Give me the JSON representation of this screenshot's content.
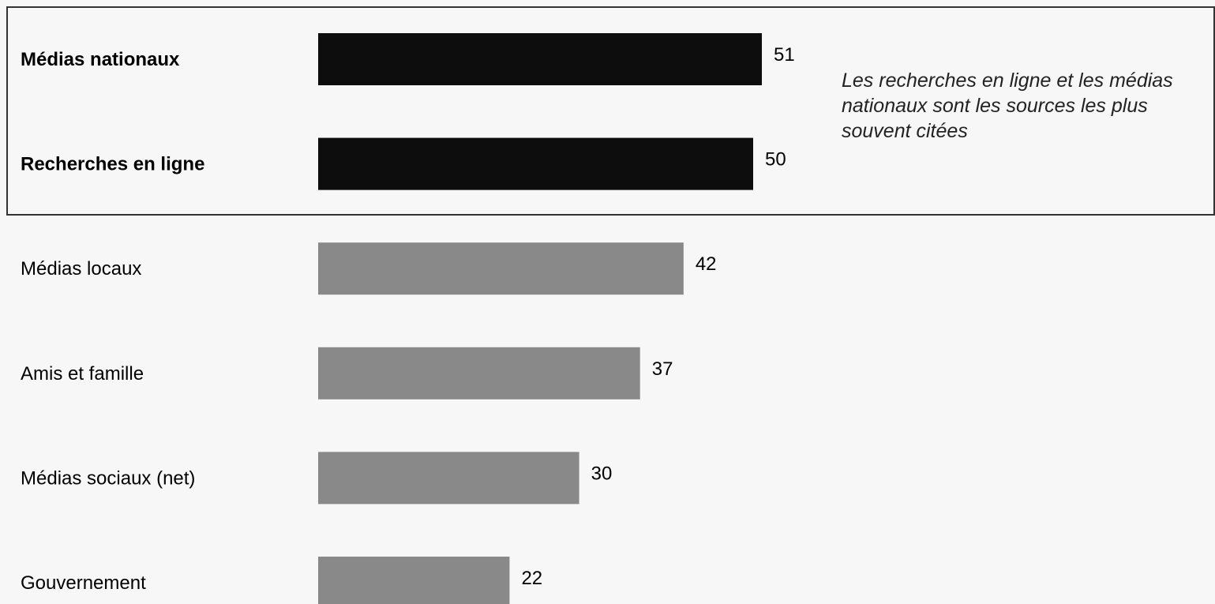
{
  "chart_data": {
    "type": "bar",
    "orientation": "horizontal",
    "categories": [
      "Médias nationaux",
      "Recherches en ligne",
      "Médias locaux",
      "Amis et famille",
      "Médias sociaux (net)",
      "Gouvernement"
    ],
    "values": [
      51,
      50,
      42,
      37,
      30,
      22
    ],
    "highlighted": [
      true,
      true,
      false,
      false,
      false,
      false
    ],
    "title": "",
    "xlabel": "",
    "ylabel": "",
    "xlim": [
      0,
      100
    ],
    "grid": false,
    "legend": "none",
    "annotation": "Les recherches en ligne et les médias nationaux sont les sources les plus souvent citées",
    "colors": {
      "highlight": "#0d0d0d",
      "normal": "#898989",
      "background": "#f7f7f7",
      "box_border": "#333333"
    }
  }
}
